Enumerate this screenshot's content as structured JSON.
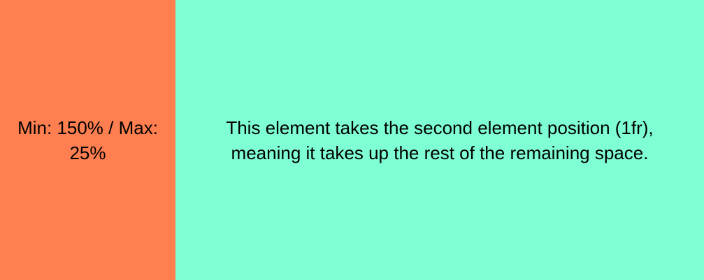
{
  "grid": {
    "first_cell": {
      "text": "Min: 150% / Max: 25%",
      "background": "#ff7f50"
    },
    "second_cell": {
      "text": "This element takes the second element position (1fr), meaning it takes up the rest of the remaining space.",
      "background": "#7fffd4"
    }
  }
}
